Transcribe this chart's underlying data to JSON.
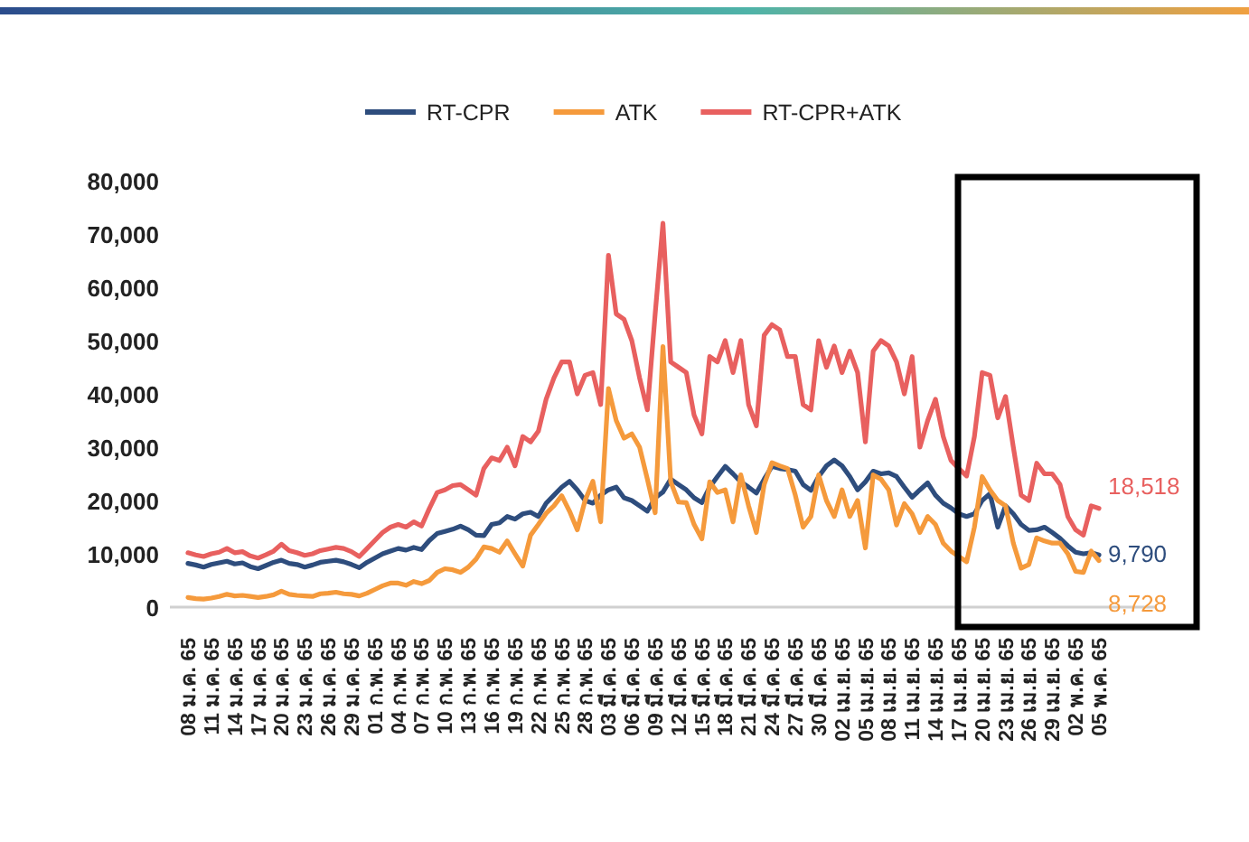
{
  "chart_data": {
    "type": "line",
    "categories": [
      "08 ม.ค. 65",
      null,
      null,
      "11 ม.ค. 65",
      null,
      null,
      "14 ม.ค. 65",
      null,
      null,
      "17 ม.ค. 65",
      null,
      null,
      "20 ม.ค. 65",
      null,
      null,
      "23 ม.ค. 65",
      null,
      null,
      "26 ม.ค. 65",
      null,
      null,
      "29 ม.ค. 65",
      null,
      null,
      "01 ก.พ. 65",
      null,
      null,
      "04 ก.พ. 65",
      null,
      null,
      "07 ก.พ. 65",
      null,
      null,
      "10 ก.พ. 65",
      null,
      null,
      "13 ก.พ. 65",
      null,
      null,
      "16 ก.พ. 65",
      null,
      null,
      "19 ก.พ. 65",
      null,
      null,
      "22 ก.พ. 65",
      null,
      null,
      "25 ก.พ. 65",
      null,
      null,
      "28 ก.พ. 65",
      null,
      null,
      "03 มี.ค. 65",
      null,
      null,
      "06 มี.ค. 65",
      null,
      null,
      "09 มี.ค. 65",
      null,
      null,
      "12 มี.ค. 65",
      null,
      null,
      "15 มี.ค. 65",
      null,
      null,
      "18 มี.ค. 65",
      null,
      null,
      "21 มี.ค. 65",
      null,
      null,
      "24 มี.ค. 65",
      null,
      null,
      "27 มี.ค. 65",
      null,
      null,
      "30 มี.ค. 65",
      null,
      null,
      "02 เม.ย. 65",
      null,
      null,
      "05 เม.ย. 65",
      null,
      null,
      "08 เม.ย. 65",
      null,
      null,
      "11 เม.ย. 65",
      null,
      null,
      "14 เม.ย. 65",
      null,
      null,
      "17 เม.ย. 65",
      null,
      null,
      "20 เม.ย. 65",
      null,
      null,
      "23 เม.ย. 65",
      null,
      null,
      "26 เม.ย. 65",
      null,
      null,
      "29 เม.ย. 65",
      null,
      null,
      "02 พ.ค. 65",
      null,
      null,
      "05 พ.ค. 65"
    ],
    "ylim": [
      0,
      80000
    ],
    "yticks": [
      {
        "value": 0,
        "label": "0"
      },
      {
        "value": 10000,
        "label": "10,000"
      },
      {
        "value": 20000,
        "label": "20,000"
      },
      {
        "value": 30000,
        "label": "30,000"
      },
      {
        "value": 40000,
        "label": "40,000"
      },
      {
        "value": 50000,
        "label": "50,000"
      },
      {
        "value": 60000,
        "label": "60,000"
      },
      {
        "value": 70000,
        "label": "70,000"
      },
      {
        "value": 80000,
        "label": "80,000"
      }
    ],
    "legend": "top",
    "grid": false,
    "marker": "none",
    "line_style": "solid",
    "series": [
      {
        "name": "RT-CPR",
        "color": "#2e4d7d",
        "values": [
          8200,
          7900,
          7500,
          8000,
          8300,
          8600,
          8100,
          8300,
          7600,
          7200,
          7800,
          8400,
          8800,
          8200,
          8000,
          7500,
          7900,
          8400,
          8600,
          8800,
          8500,
          8000,
          7400,
          8400,
          9200,
          10000,
          10500,
          11000,
          10700,
          11200,
          10800,
          12500,
          13800,
          14200,
          14600,
          15200,
          14500,
          13500,
          13400,
          15500,
          15800,
          17000,
          16500,
          17500,
          17800,
          17000,
          19500,
          21000,
          22500,
          23600,
          22000,
          20000,
          19500,
          21000,
          22000,
          22500,
          20500,
          20000,
          19000,
          18000,
          20500,
          21600,
          24000,
          23000,
          22000,
          20500,
          19600,
          22500,
          24500,
          26400,
          25000,
          23500,
          22500,
          21400,
          24000,
          26400,
          26000,
          25800,
          25500,
          23000,
          21900,
          24500,
          26500,
          27600,
          26500,
          24500,
          22000,
          23500,
          25500,
          25000,
          25200,
          24500,
          22500,
          20600,
          22000,
          23300,
          21000,
          19500,
          18600,
          17500,
          17000,
          17500,
          20000,
          21300,
          15000,
          19000,
          17500,
          15500,
          14400,
          14500,
          15000,
          14000,
          12900,
          11500,
          10300,
          10000,
          10200,
          9790
        ],
        "value_labels": [
          null,
          null,
          null,
          null,
          null,
          null,
          null,
          null,
          null,
          null,
          null,
          null,
          null,
          null,
          null,
          null,
          null,
          null,
          null,
          null,
          null,
          null,
          null,
          null,
          null,
          null,
          null,
          null,
          null,
          null,
          null,
          null,
          null,
          null,
          null,
          null,
          null,
          null,
          null,
          null,
          null,
          null,
          null,
          null,
          null,
          null,
          null,
          null,
          null,
          null,
          null,
          null,
          null,
          null,
          null,
          null,
          null,
          null,
          null,
          null,
          null,
          null,
          null,
          null,
          null,
          null,
          null,
          null,
          null,
          null,
          null,
          null,
          null,
          null,
          null,
          null,
          null,
          null,
          null,
          null,
          null,
          null,
          null,
          null,
          null,
          null,
          null,
          null,
          null,
          null,
          null,
          null,
          null,
          null,
          null,
          null,
          null,
          null,
          null,
          null,
          null,
          null,
          null,
          null,
          null,
          null,
          null,
          null,
          null,
          null,
          null,
          null,
          null,
          null,
          null,
          null,
          null,
          "9,790"
        ]
      },
      {
        "name": "ATK",
        "color": "#f59a3c",
        "values": [
          1800,
          1600,
          1500,
          1700,
          2000,
          2400,
          2100,
          2200,
          2000,
          1800,
          2000,
          2300,
          3000,
          2400,
          2200,
          2100,
          2000,
          2500,
          2600,
          2800,
          2500,
          2400,
          2100,
          2600,
          3300,
          4000,
          4500,
          4500,
          4100,
          4800,
          4400,
          5000,
          6500,
          7200,
          7000,
          6500,
          7500,
          9000,
          11300,
          11000,
          10300,
          12400,
          10000,
          7700,
          13500,
          15500,
          17600,
          19000,
          20900,
          18000,
          14500,
          20000,
          23600,
          16000,
          41000,
          35000,
          31700,
          32500,
          30000,
          24000,
          17700,
          48900,
          23500,
          19700,
          19600,
          15500,
          12800,
          23500,
          21500,
          22000,
          16000,
          24800,
          19000,
          14000,
          23000,
          27100,
          26500,
          26000,
          21000,
          15000,
          17000,
          24800,
          20000,
          17000,
          22000,
          17000,
          20000,
          11100,
          24800,
          24000,
          22000,
          15400,
          19400,
          17500,
          14000,
          17000,
          15500,
          12000,
          10500,
          9500,
          8500,
          15000,
          24500,
          22000,
          20000,
          19000,
          12000,
          7300,
          8000,
          13000,
          12400,
          12000,
          12000,
          10000,
          6700,
          6500,
          10500,
          8728
        ],
        "value_labels": [
          null,
          null,
          null,
          null,
          null,
          null,
          null,
          null,
          null,
          null,
          null,
          null,
          null,
          null,
          null,
          null,
          null,
          null,
          null,
          null,
          null,
          null,
          null,
          null,
          null,
          null,
          null,
          null,
          null,
          null,
          null,
          null,
          null,
          null,
          null,
          null,
          null,
          null,
          null,
          null,
          null,
          null,
          null,
          null,
          null,
          null,
          null,
          null,
          null,
          null,
          null,
          null,
          null,
          null,
          null,
          null,
          null,
          null,
          null,
          null,
          null,
          null,
          null,
          null,
          null,
          null,
          null,
          null,
          null,
          null,
          null,
          null,
          null,
          null,
          null,
          null,
          null,
          null,
          null,
          null,
          null,
          null,
          null,
          null,
          null,
          null,
          null,
          null,
          null,
          null,
          null,
          null,
          null,
          null,
          null,
          null,
          null,
          null,
          null,
          null,
          null,
          null,
          null,
          null,
          null,
          null,
          null,
          null,
          null,
          null,
          null,
          null,
          null,
          null,
          null,
          null,
          null,
          "8,728"
        ]
      },
      {
        "name": "RT-CPR+ATK",
        "color": "#e8605f",
        "values": [
          10200,
          9800,
          9500,
          10000,
          10300,
          11000,
          10200,
          10400,
          9600,
          9200,
          9800,
          10500,
          11800,
          10600,
          10200,
          9700,
          10000,
          10600,
          10900,
          11200,
          11000,
          10400,
          9500,
          11000,
          12500,
          14000,
          15000,
          15500,
          15000,
          16000,
          15200,
          18500,
          21500,
          22000,
          22800,
          23000,
          22000,
          21000,
          26000,
          28000,
          27500,
          30000,
          26500,
          32000,
          31000,
          33000,
          39000,
          43000,
          46000,
          46000,
          40000,
          43500,
          44000,
          38000,
          66000,
          55000,
          54000,
          50000,
          43000,
          37000,
          55000,
          72000,
          46000,
          45000,
          44000,
          36000,
          32500,
          47000,
          46000,
          50000,
          44000,
          50000,
          38000,
          34000,
          51000,
          53000,
          52000,
          47000,
          47000,
          38000,
          37000,
          50000,
          45000,
          49000,
          44000,
          48000,
          44000,
          31000,
          48000,
          50000,
          49000,
          46000,
          40000,
          47000,
          30000,
          35000,
          39000,
          32000,
          27500,
          26000,
          24600,
          32000,
          44000,
          43500,
          35500,
          39500,
          30000,
          21000,
          20000,
          27000,
          25000,
          25000,
          23000,
          17000,
          14500,
          13500,
          19000,
          18518
        ],
        "value_labels": [
          null,
          null,
          null,
          null,
          null,
          null,
          null,
          null,
          null,
          null,
          null,
          null,
          null,
          null,
          null,
          null,
          null,
          null,
          null,
          null,
          null,
          null,
          null,
          null,
          null,
          null,
          null,
          null,
          null,
          null,
          null,
          null,
          null,
          null,
          null,
          null,
          null,
          null,
          null,
          null,
          null,
          null,
          null,
          null,
          null,
          null,
          null,
          null,
          null,
          null,
          null,
          null,
          null,
          null,
          null,
          null,
          null,
          null,
          null,
          null,
          null,
          null,
          null,
          null,
          null,
          null,
          null,
          null,
          null,
          null,
          null,
          null,
          null,
          null,
          null,
          null,
          null,
          null,
          null,
          null,
          null,
          null,
          null,
          null,
          null,
          null,
          null,
          null,
          null,
          null,
          null,
          null,
          null,
          null,
          null,
          null,
          null,
          null,
          null,
          null,
          null,
          null,
          null,
          null,
          null,
          null,
          null,
          null,
          null,
          null,
          null,
          null,
          null,
          null,
          null,
          null,
          null,
          "18,518"
        ]
      }
    ]
  }
}
